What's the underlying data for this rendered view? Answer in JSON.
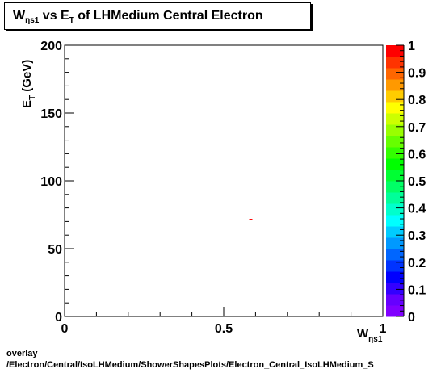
{
  "title": {
    "main": "W",
    "sub_main": "ηs1",
    "vs": " vs E",
    "sub_vs": "T",
    "rest": " of LHMedium Central  Electron"
  },
  "footer": {
    "line1": "overlay",
    "line2": "/Electron/Central/IsoLHMedium/ShowerShapesPlots/Electron_Central_IsoLHMedium_S"
  },
  "chart_data": {
    "type": "heatmap",
    "xlabel": "W",
    "xlabel_sub": "ηs1",
    "ylabel": "E",
    "ylabel_sub": "T",
    "ylabel_suffix": " (GeV)",
    "xlim": [
      0,
      1
    ],
    "ylim": [
      0,
      200
    ],
    "x_ticks": [
      {
        "value": 0,
        "label": "0"
      },
      {
        "value": 0.5,
        "label": "0.5"
      },
      {
        "value": 1,
        "label": "1"
      }
    ],
    "y_ticks": [
      {
        "value": 0,
        "label": "0"
      },
      {
        "value": 50,
        "label": "50"
      },
      {
        "value": 100,
        "label": "100"
      },
      {
        "value": 150,
        "label": "150"
      },
      {
        "value": 200,
        "label": "200"
      }
    ],
    "zlim": [
      0,
      1
    ],
    "z_ticks": [
      {
        "value": 0,
        "label": "0"
      },
      {
        "value": 0.1,
        "label": "0.1"
      },
      {
        "value": 0.2,
        "label": "0.2"
      },
      {
        "value": 0.3,
        "label": "0.3"
      },
      {
        "value": 0.4,
        "label": "0.4"
      },
      {
        "value": 0.5,
        "label": "0.5"
      },
      {
        "value": 0.6,
        "label": "0.6"
      },
      {
        "value": 0.7,
        "label": "0.7"
      },
      {
        "value": 0.8,
        "label": "0.8"
      },
      {
        "value": 0.9,
        "label": "0.9"
      },
      {
        "value": 1,
        "label": "1"
      }
    ],
    "palette": [
      "#8000ff",
      "#6600ff",
      "#3300ff",
      "#0000ff",
      "#0033ff",
      "#0066ff",
      "#0099ff",
      "#00ccff",
      "#00ffff",
      "#00ffcc",
      "#00ff99",
      "#00ff66",
      "#00ff33",
      "#00ff00",
      "#33ff00",
      "#66ff00",
      "#99ff00",
      "#ccff00",
      "#ffff00",
      "#ffcc00",
      "#ff9900",
      "#ff6600",
      "#ff3300",
      "#ff0000"
    ],
    "cells": [
      {
        "x": 0.58,
        "y": 71,
        "z": 1.0
      }
    ],
    "cell_size": {
      "dx": 0.01,
      "dy": 1
    },
    "grid": false
  }
}
